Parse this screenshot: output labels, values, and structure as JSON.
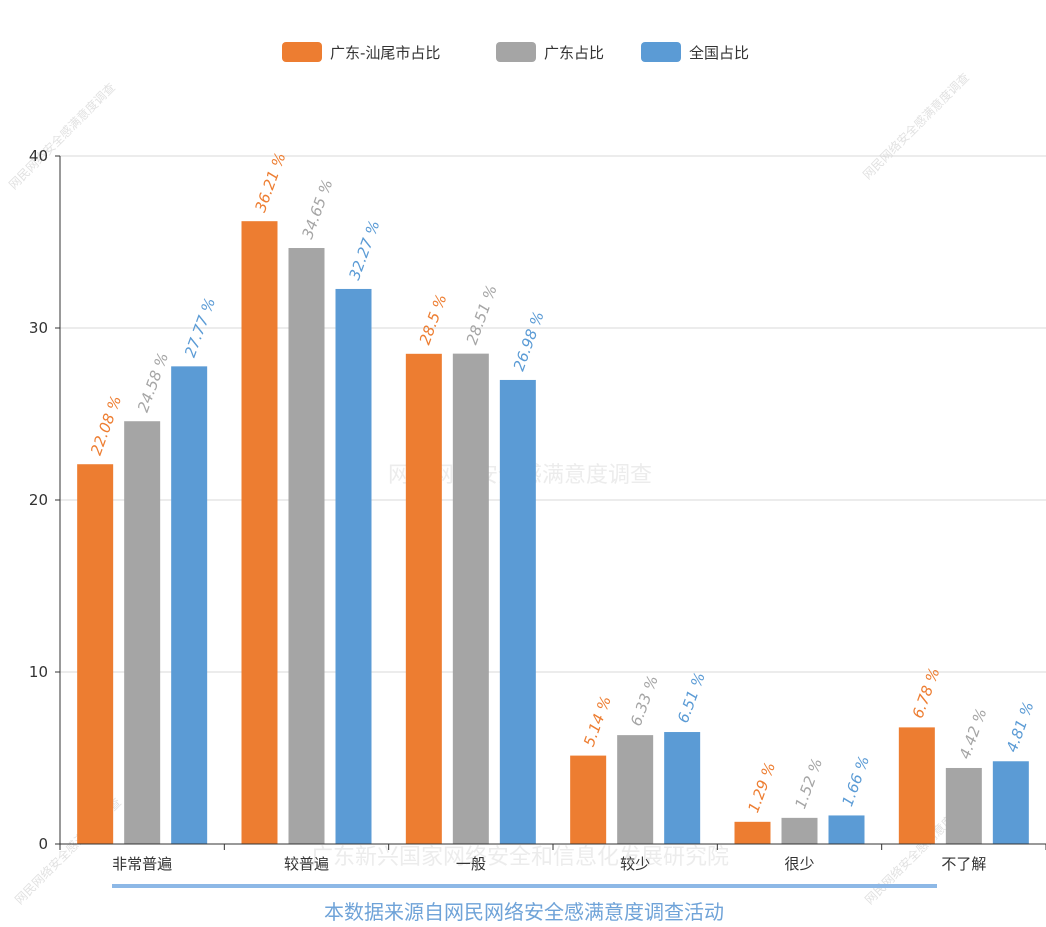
{
  "chart_data": {
    "type": "bar",
    "categories": [
      "非常普遍",
      "较普遍",
      "一般",
      "较少",
      "很少",
      "不了解"
    ],
    "series": [
      {
        "name": "广东-汕尾市占比",
        "values": [
          22.08,
          36.21,
          28.5,
          5.14,
          1.29,
          6.78
        ],
        "label_suffix": " %"
      },
      {
        "name": "广东占比",
        "values": [
          24.58,
          34.65,
          28.51,
          6.33,
          1.52,
          4.42
        ],
        "label_suffix": " %"
      },
      {
        "name": "全国占比",
        "values": [
          27.77,
          32.27,
          26.98,
          6.51,
          1.66,
          4.81
        ],
        "label_suffix": " %"
      }
    ],
    "title": "",
    "xlabel": "",
    "ylabel": "",
    "ylim": [
      0,
      40
    ],
    "yticks": [
      0,
      10,
      20,
      30,
      40
    ],
    "grid": true,
    "legend_position": "top-center"
  },
  "colors": {
    "series": [
      "#ed7d31",
      "#a5a5a5",
      "#5b9bd5"
    ],
    "grid": "#d9d9d9",
    "axis": "#333333",
    "footnote": "#6fa3d8",
    "footnote_line": "#8db8e6"
  },
  "footnote": "本数据来源自网民网络安全感满意度调查活动",
  "watermarks": {
    "corner": "网民网络安全感满意度调查",
    "center": "网民网络安全感满意度调查",
    "bottom": "广东新兴国家网络安全和信息化发展研究院"
  }
}
